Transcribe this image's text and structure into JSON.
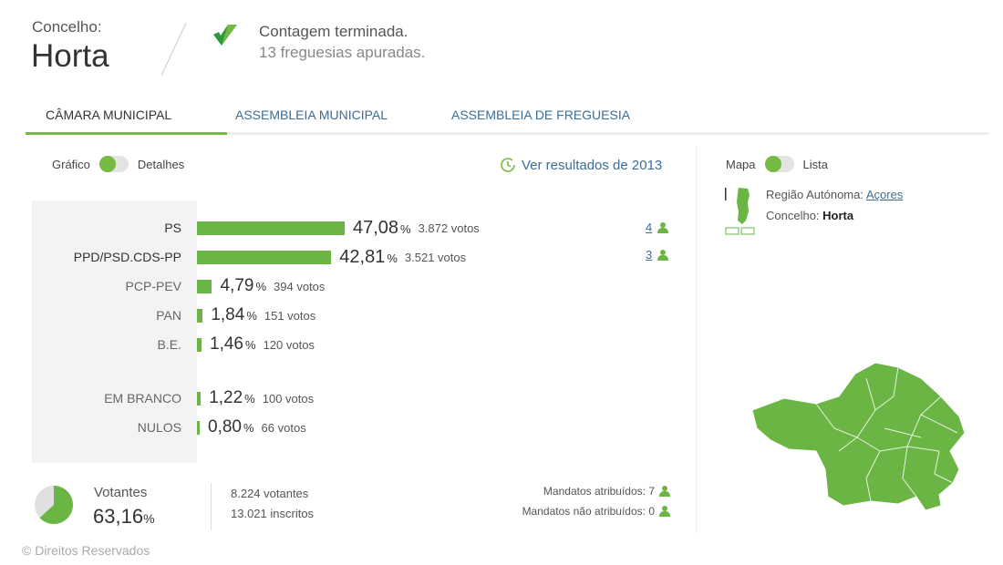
{
  "header": {
    "label": "Concelho:",
    "name": "Horta",
    "status": "Contagem terminada.",
    "substatus": "13 freguesias apuradas."
  },
  "tabs": [
    {
      "label": "CÂMARA MUNICIPAL",
      "active": true
    },
    {
      "label": "ASSEMBLEIA MUNICIPAL",
      "active": false
    },
    {
      "label": "ASSEMBLEIA DE FREGUESIA",
      "active": false
    }
  ],
  "view_toggle": {
    "left": "Gráfico",
    "right": "Detalhes",
    "state": "Gráfico"
  },
  "history_link": "Ver resultados de 2013",
  "accent": "#6ab544",
  "chart_data": {
    "type": "bar",
    "categories": [
      "PS",
      "PPD/PSD.CDS-PP",
      "PCP-PEV",
      "PAN",
      "B.E.",
      "EM BRANCO",
      "NULOS"
    ],
    "values": [
      47.08,
      42.81,
      4.79,
      1.84,
      1.46,
      1.22,
      0.8
    ],
    "pct_labels": [
      "47,08",
      "42,81",
      "4,79",
      "1,84",
      "1,46",
      "1,22",
      "0,80"
    ],
    "pct_unit": "%",
    "votes": [
      "3.872 votos",
      "3.521 votos",
      "394 votos",
      "151 votos",
      "120 votos",
      "100 votos",
      "66 votos"
    ],
    "seats": [
      "4",
      "3"
    ]
  },
  "summary": {
    "label": "Votantes",
    "pct": "63,16",
    "pct_unit": "%",
    "turnout_fraction": 0.6316,
    "voters": "8.224 votantes",
    "registered": "13.021 inscritos",
    "mandates_assigned": "Mandatos atribuídos: 7",
    "mandates_unassigned": "Mandatos não atribuídos: 0"
  },
  "map_panel": {
    "left": "Mapa",
    "right": "Lista",
    "state": "Mapa",
    "region_label": "Região Autónoma:",
    "region_link": "Açores",
    "muni_label": "Concelho:",
    "muni_value": "Horta"
  },
  "footer": "© Direitos Reservados"
}
